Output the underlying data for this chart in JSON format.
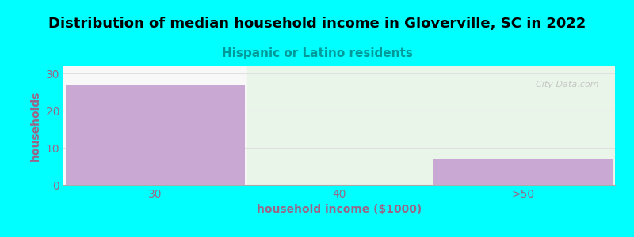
{
  "title": "Distribution of median household income in Gloverville, SC in 2022",
  "subtitle": "Hispanic or Latino residents",
  "xlabel": "household income ($1000)",
  "ylabel": "households",
  "categories": [
    "30",
    "40",
    ">50"
  ],
  "values": [
    27,
    0,
    7
  ],
  "bar_color": "#c9a8d4",
  "background_color": "#00ffff",
  "plot_bg_left": "#f8f8f8",
  "plot_bg_right": "#eaf5ea",
  "title_color": "#000000",
  "subtitle_color": "#009999",
  "axis_label_color": "#996688",
  "tick_color": "#996688",
  "grid_color": "#e0e0e0",
  "ylim": [
    0,
    32
  ],
  "yticks": [
    0,
    10,
    20,
    30
  ],
  "title_fontsize": 13,
  "subtitle_fontsize": 11,
  "label_fontsize": 10,
  "tick_fontsize": 10,
  "watermark": "  City-Data.com"
}
